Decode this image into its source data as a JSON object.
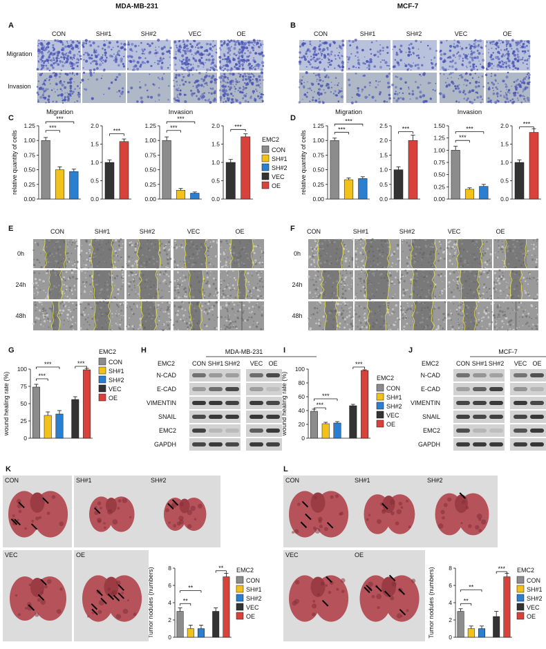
{
  "titles": {
    "left": "MDA-MB-231",
    "right": "MCF-7"
  },
  "panel_letters": {
    "A": "A",
    "B": "B",
    "C": "C",
    "D": "D",
    "E": "E",
    "F": "F",
    "G": "G",
    "H": "H",
    "I": "I",
    "J": "J",
    "K": "K",
    "L": "L"
  },
  "groups": [
    "CON",
    "SH#1",
    "SH#2",
    "VEC",
    "OE"
  ],
  "row_labels": {
    "migration": "Migration",
    "invasion": "Invasion"
  },
  "wound_rows": [
    "0h",
    "24h",
    "48h"
  ],
  "subtitles": {
    "migration": "Migration",
    "invasion": "Invasion"
  },
  "legend_title": "EMC2",
  "colors": {
    "CON": "#8c8c8c",
    "SH#1": "#f2c21b",
    "SH#2": "#2a7fd0",
    "VEC": "#333333",
    "OE": "#d9413b",
    "micro": "#b7bfd6",
    "stain": "#4b55b5",
    "wound": "#8a8a8a",
    "lung": "#b5525a"
  },
  "sig": {
    "three": "***",
    "two": "**"
  },
  "wb": {
    "left_title": "MDA-MB-231",
    "right_title": "MCF-7",
    "header_label": "EMC2",
    "proteins": [
      "N-CAD",
      "E-CAD",
      "VIMENTIN",
      "SNAIL",
      "EMC2",
      "GAPDH"
    ]
  },
  "lung_labels": {
    "left": [
      "CON",
      "SH#1",
      "SH#2",
      "VEC",
      "OE"
    ],
    "right": [
      "CON",
      "SH#1",
      "SH#2",
      "VEC",
      "OE"
    ]
  },
  "chart_data": [
    {
      "id": "C-migration-kd",
      "type": "bar",
      "categories": [
        "CON",
        "SH#1",
        "SH#2"
      ],
      "values": [
        1.0,
        0.5,
        0.47
      ],
      "errors": [
        0.05,
        0.05,
        0.04
      ],
      "title": "Migration",
      "ylabel": "relative quantity of cells",
      "ylim": [
        0,
        1.25
      ],
      "ticks": [
        "0.00",
        "0.25",
        "0.50",
        "0.75",
        "1.00",
        "1.25"
      ]
    },
    {
      "id": "C-migration-oe",
      "type": "bar",
      "categories": [
        "VEC",
        "OE"
      ],
      "values": [
        1.0,
        1.57
      ],
      "errors": [
        0.07,
        0.07
      ],
      "ylim": [
        0,
        2.0
      ],
      "ticks": [
        "0.0",
        "0.5",
        "1.0",
        "1.5",
        "2.0"
      ]
    },
    {
      "id": "C-invasion-kd",
      "type": "bar",
      "categories": [
        "CON",
        "SH#1",
        "SH#2"
      ],
      "values": [
        1.0,
        0.15,
        0.1
      ],
      "errors": [
        0.06,
        0.03,
        0.02
      ],
      "title": "Invasion",
      "ylim": [
        0,
        1.25
      ],
      "ticks": [
        "0.00",
        "0.25",
        "0.50",
        "0.75",
        "1.00",
        "1.25"
      ]
    },
    {
      "id": "C-invasion-oe",
      "type": "bar",
      "categories": [
        "VEC",
        "OE"
      ],
      "values": [
        1.0,
        1.7
      ],
      "errors": [
        0.08,
        0.08
      ],
      "ylim": [
        0,
        2.0
      ],
      "ticks": [
        "0.0",
        "0.5",
        "1.0",
        "1.5",
        "2.0"
      ]
    },
    {
      "id": "D-migration-kd",
      "type": "bar",
      "categories": [
        "CON",
        "SH#1",
        "SH#2"
      ],
      "values": [
        1.0,
        0.33,
        0.35
      ],
      "errors": [
        0.04,
        0.03,
        0.03
      ],
      "title": "Migration",
      "ylabel": "relative quantity of cells",
      "ylim": [
        0,
        1.25
      ],
      "ticks": [
        "0.00",
        "0.25",
        "0.50",
        "0.75",
        "1.00",
        "1.25"
      ]
    },
    {
      "id": "D-migration-oe",
      "type": "bar",
      "categories": [
        "VEC",
        "OE"
      ],
      "values": [
        1.0,
        2.0
      ],
      "errors": [
        0.1,
        0.18
      ],
      "ylim": [
        0,
        2.5
      ],
      "ticks": [
        "0.0",
        "0.5",
        "1.0",
        "1.5",
        "2.0",
        "2.5"
      ]
    },
    {
      "id": "D-invasion-kd",
      "type": "bar",
      "categories": [
        "CON",
        "SH#1",
        "SH#2"
      ],
      "values": [
        1.0,
        0.2,
        0.26
      ],
      "errors": [
        0.08,
        0.03,
        0.04
      ],
      "title": "Invasion",
      "ylim": [
        0,
        1.5
      ],
      "ticks": [
        "0.00",
        "0.25",
        "0.50",
        "0.75",
        "1.00",
        "1.25",
        "1.50"
      ]
    },
    {
      "id": "D-invasion-oe",
      "type": "bar",
      "categories": [
        "VEC",
        "OE"
      ],
      "values": [
        1.0,
        1.82
      ],
      "errors": [
        0.07,
        0.1
      ],
      "ylim": [
        0,
        2.0
      ],
      "ticks": [
        "0.0",
        "0.5",
        "1.0",
        "1.5",
        "2.0"
      ]
    },
    {
      "id": "G-wound",
      "type": "bar",
      "categories": [
        "CON",
        "SH#1",
        "SH#2",
        "VEC",
        "OE"
      ],
      "values": [
        74,
        33,
        35,
        56,
        99
      ],
      "errors": [
        4,
        5,
        5,
        4,
        2
      ],
      "ylabel": "wound healing rate (%)",
      "ylim": [
        0,
        100
      ],
      "ticks": [
        "0",
        "25",
        "50",
        "75",
        "100"
      ]
    },
    {
      "id": "I-wound",
      "type": "bar",
      "categories": [
        "CON",
        "SH#1",
        "SH#2",
        "VEC",
        "OE"
      ],
      "values": [
        39,
        21,
        22,
        47,
        98
      ],
      "errors": [
        3,
        2,
        2,
        2,
        1
      ],
      "ylabel": "wound healing rate (%)",
      "ylim": [
        0,
        100
      ],
      "ticks": [
        "0",
        "20",
        "40",
        "60",
        "80",
        "100"
      ]
    },
    {
      "id": "K-nodules",
      "type": "bar",
      "categories": [
        "CON",
        "SH#1",
        "SH#2",
        "VEC",
        "OE"
      ],
      "values": [
        3.0,
        1.0,
        1.0,
        3.0,
        7.0
      ],
      "errors": [
        0.4,
        0.4,
        0.4,
        0.4,
        0.4
      ],
      "ylabel": "Tumor nodules (numbers)",
      "ylim": [
        0,
        8
      ],
      "ticks": [
        "0",
        "2",
        "4",
        "6",
        "8"
      ]
    },
    {
      "id": "L-nodules",
      "type": "bar",
      "categories": [
        "CON",
        "SH#1",
        "SH#2",
        "VEC",
        "OE"
      ],
      "values": [
        3.0,
        1.0,
        1.0,
        2.4,
        7.0
      ],
      "errors": [
        0.3,
        0.3,
        0.3,
        0.6,
        0.4
      ],
      "ylabel": "Tumor nodules (numbers)",
      "ylim": [
        0,
        8
      ],
      "ticks": [
        "0",
        "2",
        "4",
        "6",
        "8"
      ]
    }
  ]
}
